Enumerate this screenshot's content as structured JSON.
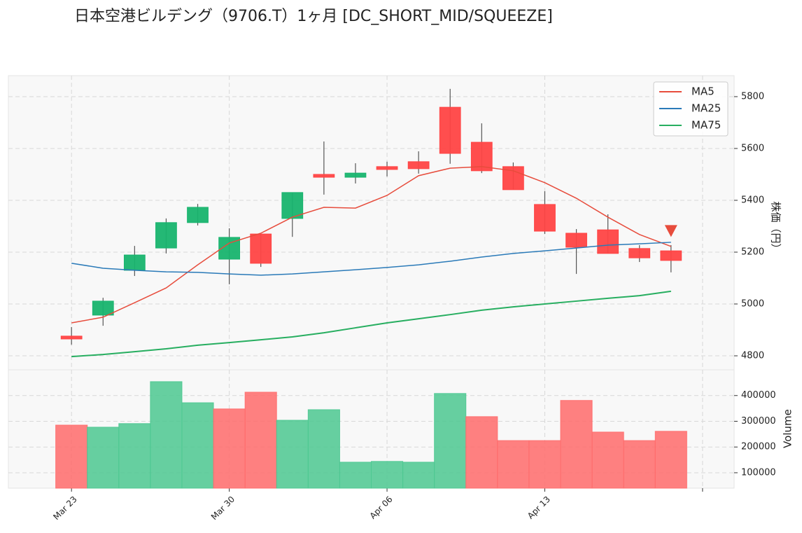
{
  "chart_data": {
    "type": "candlestick",
    "title": "日本空港ビルデング（9706.T）1ヶ月 [DC_SHORT_MID/SQUEEZE]",
    "xlim": [
      -2,
      21
    ],
    "xticks": [
      {
        "value": 0,
        "label": "Mar 23"
      },
      {
        "value": 5,
        "label": "Mar 30"
      },
      {
        "value": 10,
        "label": "Apr 06"
      },
      {
        "value": 15,
        "label": "Apr 13"
      },
      {
        "value": 20,
        "label": null
      }
    ],
    "ylabel": "株価（円）",
    "ylim": [
      4746,
      5881
    ],
    "yticks": [
      4800,
      5000,
      5200,
      5400,
      5600,
      5800
    ],
    "open": [
      4876,
      4957,
      5130,
      5216,
      5314,
      5173,
      5270,
      5330,
      5500,
      5489,
      5530,
      5549,
      5759,
      5624,
      5530,
      5384,
      5273,
      5286,
      5214,
      5205
    ],
    "high": [
      4911,
      5024,
      5224,
      5330,
      5386,
      5292,
      5270,
      5430,
      5627,
      5543,
      5549,
      5589,
      5830,
      5697,
      5546,
      5435,
      5289,
      5346,
      5227,
      5227
    ],
    "low": [
      4843,
      4916,
      5108,
      5195,
      5303,
      5076,
      5143,
      5259,
      5422,
      5465,
      5492,
      5503,
      5541,
      5505,
      5441,
      5270,
      5116,
      5195,
      5162,
      5122
    ],
    "close": [
      4865,
      5011,
      5189,
      5314,
      5373,
      5257,
      5157,
      5430,
      5489,
      5505,
      5519,
      5522,
      5581,
      5514,
      5441,
      5281,
      5219,
      5195,
      5178,
      5168
    ],
    "up_color": "#18b46e",
    "down_color": "#ff4444",
    "series": [
      {
        "name": "MA5",
        "color": "#e74c3c",
        "values": [
          4927,
          4949,
          5005,
          5062,
          5151,
          5235,
          5273,
          5335,
          5373,
          5370,
          5419,
          5495,
          5524,
          5530,
          5514,
          5468,
          5408,
          5335,
          5268,
          5222
        ]
      },
      {
        "name": "MA25",
        "color": "#2a7ab8",
        "values": [
          5157,
          5138,
          5130,
          5124,
          5122,
          5116,
          5111,
          5116,
          5124,
          5132,
          5141,
          5151,
          5165,
          5181,
          5195,
          5205,
          5216,
          5227,
          5232,
          5238
        ]
      },
      {
        "name": "MA75",
        "color": "#27ae60",
        "values": [
          4797,
          4805,
          4816,
          4827,
          4841,
          4851,
          4862,
          4873,
          4889,
          4908,
          4927,
          4943,
          4959,
          4976,
          4989,
          5000,
          5011,
          5022,
          5032,
          5049
        ]
      }
    ],
    "markers": [
      {
        "x": 19,
        "value": 5280
      }
    ],
    "marker_color": "#e74c3c",
    "grid": true,
    "legend": "upper right",
    "volume": {
      "ylabel": "Volume",
      "ylim": [
        40000,
        500000
      ],
      "yticks": [
        100000,
        200000,
        300000,
        400000
      ],
      "values": [
        285000,
        277000,
        291000,
        454000,
        372000,
        348000,
        413000,
        304000,
        345000,
        141000,
        144000,
        141000,
        408000,
        318000,
        225000,
        225000,
        381000,
        258000,
        225000,
        261000
      ],
      "colors": [
        "#ff6b6b",
        "#4cc891",
        "#4cc891",
        "#4cc891",
        "#4cc891",
        "#ff6b6b",
        "#ff6b6b",
        "#4cc891",
        "#4cc891",
        "#4cc891",
        "#4cc891",
        "#4cc891",
        "#4cc891",
        "#ff6b6b",
        "#ff6b6b",
        "#ff6b6b",
        "#ff6b6b",
        "#ff6b6b",
        "#ff6b6b",
        "#ff6b6b"
      ]
    }
  }
}
